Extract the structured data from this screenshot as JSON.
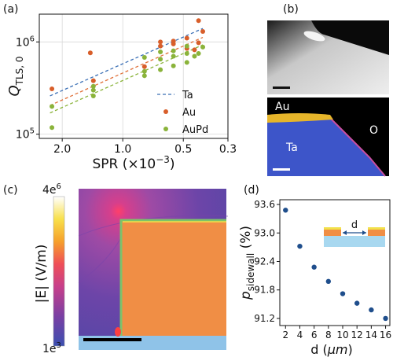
{
  "panels": {
    "a": "(a)",
    "b": "(b)",
    "c": "(c)",
    "d": "(d)"
  },
  "chart_data": [
    {
      "id": "a",
      "type": "scatter",
      "title": "",
      "xlabel_prefix": "SPR (×10",
      "xlabel_exp": "−3",
      "xlabel_suffix": ")",
      "ylabel_main": "Q",
      "ylabel_sub": "TLS, 0",
      "x_scale": "log-reversed",
      "y_scale": "log",
      "xlim": [
        2.6,
        0.3
      ],
      "ylim": [
        90000,
        2000000
      ],
      "xticks": [
        {
          "value": 2.0,
          "label": "2.0"
        },
        {
          "value": 1.0,
          "label": "1.0"
        },
        {
          "value": 0.5,
          "label": "0.5"
        },
        {
          "value": 0.3,
          "label": "0.3"
        }
      ],
      "yticks": [
        {
          "value": 100000,
          "base": "10",
          "exp": "5"
        },
        {
          "value": 1000000,
          "base": "10",
          "exp": "6"
        }
      ],
      "grid": true,
      "legend_position": "right",
      "fit_lines": [
        {
          "name": "Ta",
          "color": "#3a6fb5",
          "x": [
            2.3,
            0.4
          ],
          "y": [
            260000,
            1400000
          ]
        },
        {
          "name": "",
          "color": "#e0703a",
          "x": [
            2.3,
            0.4
          ],
          "y": [
            205000,
            1120000
          ]
        },
        {
          "name": "",
          "color": "#8ab33a",
          "x": [
            2.3,
            0.4
          ],
          "y": [
            170000,
            930000
          ]
        }
      ],
      "series": [
        {
          "name": "Au",
          "color": "#d85e2a",
          "points": [
            [
              2.25,
              310000
            ],
            [
              1.45,
              760000
            ],
            [
              1.4,
              380000
            ],
            [
              0.78,
              540000
            ],
            [
              0.65,
              900000
            ],
            [
              0.65,
              1000000
            ],
            [
              0.56,
              950000
            ],
            [
              0.56,
              1020000
            ],
            [
              0.48,
              850000
            ],
            [
              0.48,
              1100000
            ],
            [
              0.44,
              820000
            ],
            [
              0.42,
              980000
            ],
            [
              0.4,
              1300000
            ],
            [
              0.42,
              1700000
            ]
          ]
        },
        {
          "name": "AuPd",
          "color": "#8ab33a",
          "points": [
            [
              2.25,
              200000
            ],
            [
              2.25,
              118000
            ],
            [
              1.4,
              260000
            ],
            [
              1.4,
              300000
            ],
            [
              1.4,
              330000
            ],
            [
              0.78,
              430000
            ],
            [
              0.78,
              480000
            ],
            [
              0.78,
              680000
            ],
            [
              0.65,
              500000
            ],
            [
              0.65,
              650000
            ],
            [
              0.65,
              780000
            ],
            [
              0.56,
              550000
            ],
            [
              0.56,
              700000
            ],
            [
              0.56,
              800000
            ],
            [
              0.48,
              600000
            ],
            [
              0.48,
              750000
            ],
            [
              0.48,
              900000
            ],
            [
              0.44,
              700000
            ],
            [
              0.42,
              750000
            ],
            [
              0.4,
              880000
            ]
          ]
        }
      ]
    },
    {
      "id": "d",
      "type": "scatter",
      "title": "",
      "xlabel_prefix": "d (",
      "xlabel_unit": "μm",
      "xlabel_suffix": ")",
      "ylabel_main": "p",
      "ylabel_sub": "sidewall",
      "ylabel_unit": " (%)",
      "xlim": [
        1.2,
        16.6
      ],
      "ylim": [
        91.05,
        93.7
      ],
      "xticks": [
        2,
        4,
        6,
        8,
        10,
        12,
        14,
        16
      ],
      "yticks": [
        "93.6",
        "93.0",
        "92.4",
        "91.8",
        "91.2"
      ],
      "grid": false,
      "color": "#1f4e8c",
      "x": [
        2,
        4,
        6,
        8,
        10,
        12,
        14,
        16
      ],
      "y": [
        93.48,
        92.72,
        92.28,
        91.98,
        91.72,
        91.52,
        91.38,
        91.2
      ],
      "inset_label": "d"
    }
  ],
  "panel_b": {
    "au_label": "Au",
    "ta_label": "Ta",
    "o_label": "O"
  },
  "panel_c": {
    "colorbar_label": "|E| (V/m)",
    "colorbar_max_base": "4e",
    "colorbar_max_exp": "6",
    "colorbar_min_base": "1e",
    "colorbar_min_exp": "3"
  },
  "legend": {
    "ta": "Ta",
    "au": "Au",
    "aupd": "AuPd"
  }
}
